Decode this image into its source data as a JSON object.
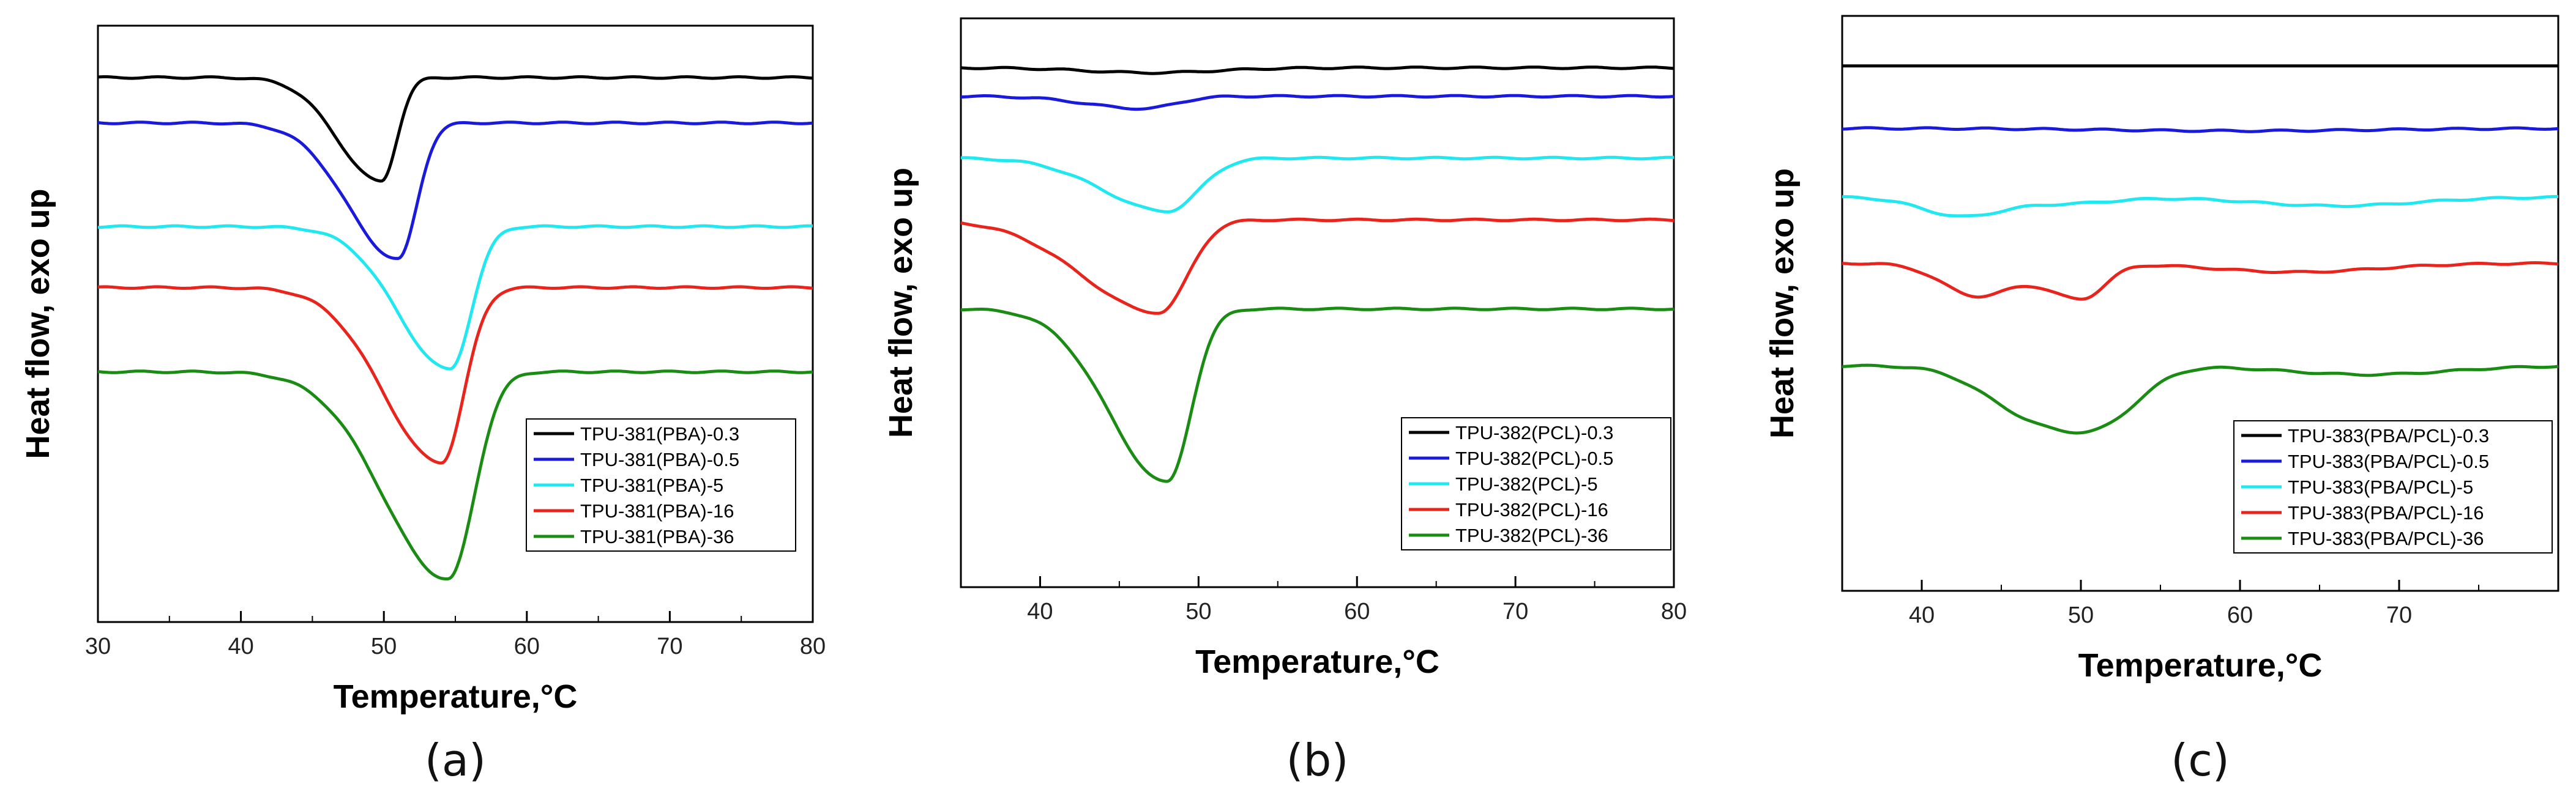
{
  "colors": {
    "0.3": "#000000",
    "0.5": "#1a1adc",
    "5": "#1fe8f0",
    "16": "#e8241c",
    "36": "#1a8c14"
  },
  "chart_data": [
    {
      "type": "line",
      "panel_label": "(a)",
      "xlabel": "Temperature,°C",
      "ylabel": "Heat flow, exo up",
      "xlim": [
        30,
        80
      ],
      "xticks": [
        30,
        40,
        50,
        60,
        70,
        80
      ],
      "yticks_shown": false,
      "legend_position": "bottom-right",
      "series": [
        {
          "name": "TPU-381(PBA)-0.3",
          "key": "0.3",
          "baseline": 4.5,
          "peaks": [
            {
              "center": 49.8,
              "depth": 0.8,
              "wl": 3.0,
              "wr": 1.1
            }
          ]
        },
        {
          "name": "TPU-381(PBA)-0.5",
          "key": "0.5",
          "baseline": 4.15,
          "peaks": [
            {
              "center": 51.0,
              "depth": 1.05,
              "wl": 3.5,
              "wr": 1.3
            }
          ]
        },
        {
          "name": "TPU-381(PBA)-5",
          "key": "5",
          "baseline": 3.35,
          "peaks": [
            {
              "center": 54.6,
              "depth": 1.1,
              "wl": 3.6,
              "wr": 1.5
            }
          ]
        },
        {
          "name": "TPU-381(PBA)-16",
          "key": "16",
          "baseline": 2.88,
          "peaks": [
            {
              "center": 54.0,
              "depth": 1.35,
              "wl": 4.0,
              "wr": 1.6
            }
          ]
        },
        {
          "name": "TPU-381(PBA)-36",
          "key": "36",
          "baseline": 2.23,
          "peaks": [
            {
              "center": 54.5,
              "depth": 1.6,
              "wl": 4.5,
              "wr": 1.8
            }
          ]
        }
      ]
    },
    {
      "type": "line",
      "panel_label": "(b)",
      "xlabel": "Temperature,°C",
      "ylabel": "Heat flow, exo up",
      "xlim": [
        35,
        80
      ],
      "xticks": [
        40,
        50,
        60,
        70,
        80
      ],
      "yticks_shown": false,
      "legend_position": "bottom-right",
      "series": [
        {
          "name": "TPU-382(PCL)-0.3",
          "key": "0.3",
          "baseline": 4.5,
          "peaks": [
            {
              "center": 47.0,
              "depth": 0.04,
              "wl": 4.0,
              "wr": 4.0
            }
          ]
        },
        {
          "name": "TPU-382(PCL)-0.5",
          "key": "0.5",
          "baseline": 4.27,
          "peaks": [
            {
              "center": 46.5,
              "depth": 0.1,
              "wl": 3.5,
              "wr": 2.0
            }
          ]
        },
        {
          "name": "TPU-382(PCL)-5",
          "key": "5",
          "baseline": 3.77,
          "peaks": [
            {
              "center": 48.0,
              "depth": 0.43,
              "wl": 4.0,
              "wr": 2.0
            }
          ]
        },
        {
          "name": "TPU-382(PCL)-16",
          "key": "16",
          "baseline": 3.27,
          "peaks": [
            {
              "center": 47.5,
              "depth": 0.75,
              "wl": 4.8,
              "wr": 1.8
            }
          ]
        },
        {
          "name": "TPU-382(PCL)-36",
          "key": "36",
          "baseline": 2.55,
          "peaks": [
            {
              "center": 48.0,
              "depth": 1.4,
              "wl": 3.6,
              "wr": 1.5
            }
          ]
        }
      ]
    },
    {
      "type": "line",
      "panel_label": "(c)",
      "xlabel": "Temperature,°C",
      "ylabel": "Heat flow, exo up",
      "xlim": [
        35,
        80
      ],
      "xticks": [
        40,
        50,
        60,
        70
      ],
      "yticks_shown": false,
      "legend_position": "bottom-right",
      "series": [
        {
          "name": "TPU-383(PBA/PCL)-0.3",
          "key": "0.3",
          "baseline": 4.5,
          "peaks": []
        },
        {
          "name": "TPU-383(PBA/PCL)-0.5",
          "key": "0.5",
          "baseline": 4.0,
          "peaks": [
            {
              "center": 60.0,
              "depth": 0.02,
              "wl": 8.0,
              "wr": 8.0
            }
          ]
        },
        {
          "name": "TPU-383(PBA/PCL)-5",
          "key": "5",
          "baseline": 3.45,
          "peaks": [
            {
              "center": 42.5,
              "depth": 0.15,
              "wl": 2.5,
              "wr": 2.5
            },
            {
              "center": 49.0,
              "depth": 0.05,
              "wl": 3.0,
              "wr": 3.0
            },
            {
              "center": 66.0,
              "depth": 0.07,
              "wl": 5.0,
              "wr": 5.0
            }
          ]
        },
        {
          "name": "TPU-383(PBA/PCL)-16",
          "key": "16",
          "baseline": 2.92,
          "peaks": [
            {
              "center": 43.5,
              "depth": 0.26,
              "wl": 2.2,
              "wr": 2.2
            },
            {
              "center": 50.0,
              "depth": 0.28,
              "wl": 2.2,
              "wr": 1.5
            },
            {
              "center": 63.5,
              "depth": 0.07,
              "wl": 5.0,
              "wr": 5.0
            }
          ]
        },
        {
          "name": "TPU-383(PBA/PCL)-36",
          "key": "36",
          "baseline": 2.1,
          "peaks": [
            {
              "center": 47.0,
              "depth": 0.38,
              "wl": 3.0,
              "wr": 3.0
            },
            {
              "center": 51.5,
              "depth": 0.36,
              "wl": 2.5,
              "wr": 2.4
            },
            {
              "center": 68.0,
              "depth": 0.07,
              "wl": 5.0,
              "wr": 5.0
            }
          ]
        }
      ]
    }
  ]
}
